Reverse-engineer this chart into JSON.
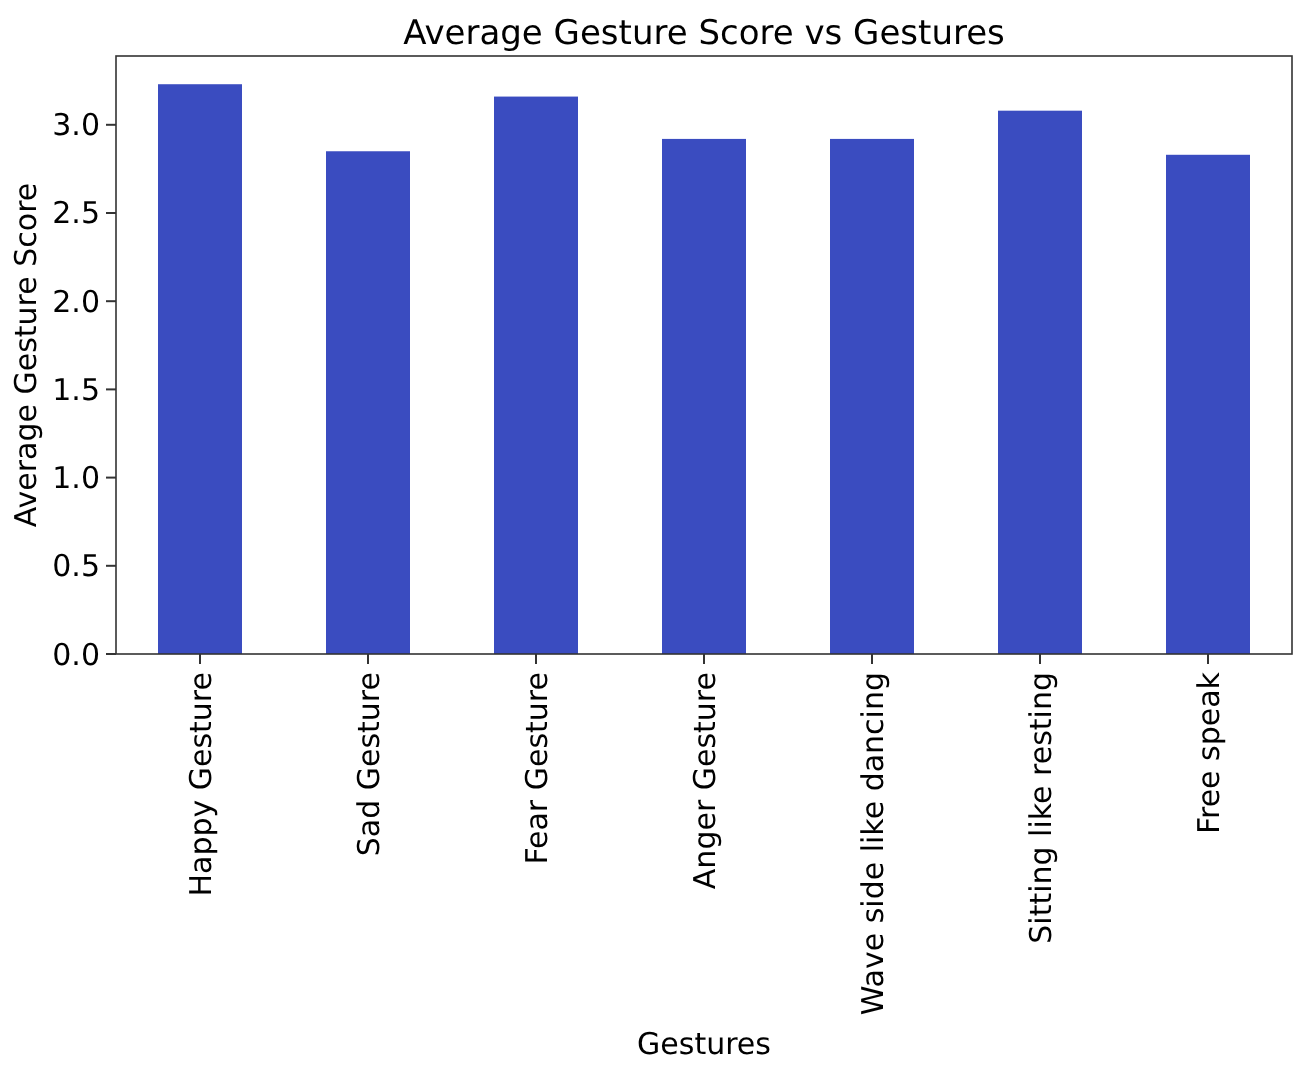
{
  "chart_data": {
    "type": "bar",
    "title": "Average Gesture Score vs Gestures",
    "xlabel": "Gestures",
    "ylabel": "Average Gesture Score",
    "categories": [
      "Happy Gesture",
      "Sad Gesture",
      "Fear Gesture",
      "Anger Gesture",
      "Wave side like dancing",
      "Sitting like resting",
      "Free speak"
    ],
    "values": [
      3.23,
      2.85,
      3.16,
      2.92,
      2.92,
      3.08,
      2.83
    ],
    "color": "#3a4cc0",
    "ylim": [
      0,
      3.39
    ],
    "yticks": [
      {
        "value": 0,
        "label": "0.0"
      },
      {
        "value": 0.5,
        "label": "0.5"
      },
      {
        "value": 1,
        "label": "1.0"
      },
      {
        "value": 1.5,
        "label": "1.5"
      },
      {
        "value": 2,
        "label": "2.0"
      },
      {
        "value": 2.5,
        "label": "2.5"
      },
      {
        "value": 3,
        "label": "3.0"
      }
    ],
    "grid": false
  }
}
